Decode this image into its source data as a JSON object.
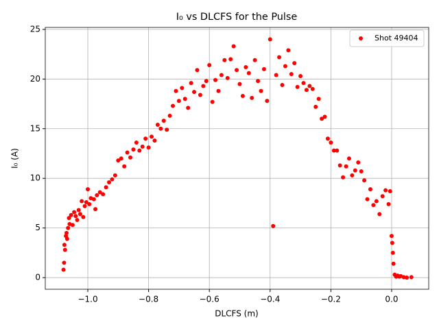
{
  "chart_data": {
    "type": "scatter",
    "title": "I₀ vs DLCFS for the Pulse",
    "x_label": "DLCFS (m)",
    "y_label": "I₀ (A)",
    "xlim": [
      -1.14,
      0.122
    ],
    "ylim": [
      -1.17,
      25.2
    ],
    "xticks": [
      {
        "value": -1.0,
        "label": "−1.0"
      },
      {
        "value": -0.8,
        "label": "−0.8"
      },
      {
        "value": -0.6,
        "label": "−0.6"
      },
      {
        "value": -0.4,
        "label": "−0.4"
      },
      {
        "value": -0.2,
        "label": "−0.2"
      },
      {
        "value": 0.0,
        "label": "0.0"
      }
    ],
    "yticks": [
      0,
      5,
      10,
      15,
      20,
      25
    ],
    "grid": true,
    "legend": "upper right",
    "series": [
      {
        "name": "Shot 49404",
        "color": "#ff0000",
        "x": [
          -1.08,
          -1.078,
          -1.077,
          -1.075,
          -1.072,
          -1.07,
          -1.068,
          -1.065,
          -1.062,
          -1.06,
          -1.055,
          -1.05,
          -1.045,
          -1.04,
          -1.035,
          -1.03,
          -1.025,
          -1.02,
          -1.015,
          -1.01,
          -1.005,
          -1.0,
          -0.995,
          -0.99,
          -0.98,
          -0.975,
          -0.97,
          -0.96,
          -0.95,
          -0.94,
          -0.93,
          -0.92,
          -0.91,
          -0.9,
          -0.89,
          -0.88,
          -0.87,
          -0.86,
          -0.85,
          -0.84,
          -0.83,
          -0.82,
          -0.81,
          -0.8,
          -0.79,
          -0.78,
          -0.77,
          -0.76,
          -0.75,
          -0.74,
          -0.73,
          -0.72,
          -0.71,
          -0.7,
          -0.69,
          -0.68,
          -0.67,
          -0.66,
          -0.65,
          -0.64,
          -0.63,
          -0.62,
          -0.61,
          -0.6,
          -0.59,
          -0.58,
          -0.57,
          -0.56,
          -0.55,
          -0.54,
          -0.53,
          -0.52,
          -0.51,
          -0.5,
          -0.49,
          -0.48,
          -0.47,
          -0.46,
          -0.45,
          -0.44,
          -0.43,
          -0.42,
          -0.41,
          -0.4,
          -0.39,
          -0.38,
          -0.37,
          -0.36,
          -0.35,
          -0.34,
          -0.33,
          -0.32,
          -0.31,
          -0.3,
          -0.29,
          -0.28,
          -0.27,
          -0.26,
          -0.25,
          -0.24,
          -0.23,
          -0.22,
          -0.21,
          -0.2,
          -0.19,
          -0.18,
          -0.17,
          -0.16,
          -0.15,
          -0.14,
          -0.13,
          -0.12,
          -0.11,
          -0.1,
          -0.09,
          -0.08,
          -0.07,
          -0.06,
          -0.05,
          -0.04,
          -0.03,
          -0.02,
          -0.01,
          -0.005,
          0.0,
          0.002,
          0.004,
          0.006,
          0.01,
          0.015,
          0.02,
          0.025,
          0.03,
          0.04,
          0.05,
          0.065
        ],
        "values": [
          0.8,
          1.5,
          3.3,
          2.8,
          4.2,
          4.5,
          3.9,
          5.0,
          6.0,
          5.4,
          6.3,
          5.3,
          6.6,
          6.2,
          5.8,
          6.8,
          6.4,
          7.7,
          6.1,
          7.2,
          7.6,
          8.9,
          7.4,
          8.0,
          7.9,
          6.9,
          8.3,
          8.6,
          8.4,
          9.1,
          9.6,
          9.9,
          10.3,
          11.8,
          12.0,
          11.2,
          12.6,
          12.1,
          12.9,
          13.6,
          12.8,
          13.2,
          14.0,
          13.1,
          14.2,
          13.8,
          15.4,
          15.0,
          15.8,
          14.9,
          16.3,
          17.3,
          18.8,
          17.8,
          19.1,
          18.0,
          17.1,
          19.6,
          18.7,
          20.9,
          18.4,
          19.3,
          19.8,
          21.4,
          17.7,
          19.9,
          18.8,
          20.4,
          21.9,
          20.1,
          22.0,
          23.3,
          20.9,
          19.5,
          18.3,
          21.2,
          20.6,
          18.1,
          21.9,
          19.8,
          18.8,
          21.0,
          17.8,
          24.0,
          5.2,
          20.4,
          22.2,
          19.4,
          21.3,
          22.9,
          20.5,
          21.6,
          19.2,
          20.3,
          19.6,
          18.9,
          19.3,
          19.0,
          17.2,
          18.0,
          16.0,
          16.2,
          14.0,
          13.6,
          12.8,
          12.8,
          11.3,
          10.1,
          11.2,
          12.0,
          10.3,
          10.8,
          11.6,
          10.7,
          9.8,
          7.9,
          8.9,
          7.3,
          7.7,
          6.4,
          8.2,
          8.8,
          7.4,
          8.7,
          4.2,
          3.5,
          2.5,
          1.4,
          0.3,
          0.1,
          0.2,
          0.1,
          0.15,
          0.05,
          0.0,
          0.05
        ]
      }
    ]
  }
}
